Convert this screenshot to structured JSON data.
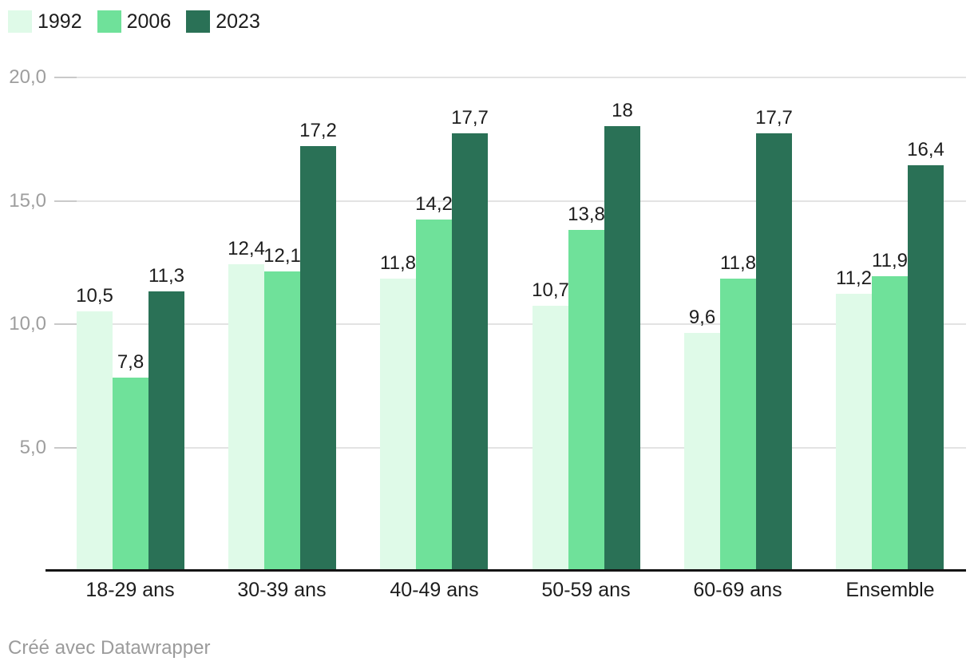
{
  "legend": {
    "items": [
      {
        "label": "1992",
        "color": "#dffae8"
      },
      {
        "label": "2006",
        "color": "#6fe19a"
      },
      {
        "label": "2023",
        "color": "#2a7156"
      }
    ]
  },
  "chart_data": {
    "type": "bar",
    "categories": [
      "18-29 ans",
      "30-39 ans",
      "40-49 ans",
      "50-59 ans",
      "60-69 ans",
      "Ensemble"
    ],
    "series": [
      {
        "name": "1992",
        "color": "#dffae8",
        "values": [
          10.5,
          12.4,
          11.8,
          10.7,
          9.6,
          11.2
        ],
        "labels": [
          "10,5",
          "12,4",
          "11,8",
          "10,7",
          "9,6",
          "11,2"
        ]
      },
      {
        "name": "2006",
        "color": "#6fe19a",
        "values": [
          7.8,
          12.1,
          14.2,
          13.8,
          11.8,
          11.9
        ],
        "labels": [
          "7,8",
          "12,1",
          "14,2",
          "13,8",
          "11,8",
          "11,9"
        ]
      },
      {
        "name": "2023",
        "color": "#2a7156",
        "values": [
          11.3,
          17.2,
          17.7,
          18,
          17.7,
          16.4
        ],
        "labels": [
          "11,3",
          "17,2",
          "17,7",
          "18",
          "17,7",
          "16,4"
        ]
      }
    ],
    "title": "",
    "xlabel": "",
    "ylabel": "",
    "ylim": [
      0,
      20
    ],
    "yticks": [
      {
        "value": 5,
        "label": "5,0"
      },
      {
        "value": 10,
        "label": "10,0"
      },
      {
        "value": 15,
        "label": "15,0"
      },
      {
        "value": 20,
        "label": "20,0"
      }
    ],
    "grid": true,
    "legend_position": "top-left"
  },
  "footer": {
    "credit": "Créé avec Datawrapper"
  },
  "colors": {
    "background": "#ffffff",
    "grid": "#e3e3e3",
    "tick": "#c9c9c9",
    "axis_label": "#9e9e9e",
    "text": "#1d1d1d",
    "baseline": "#141414"
  }
}
